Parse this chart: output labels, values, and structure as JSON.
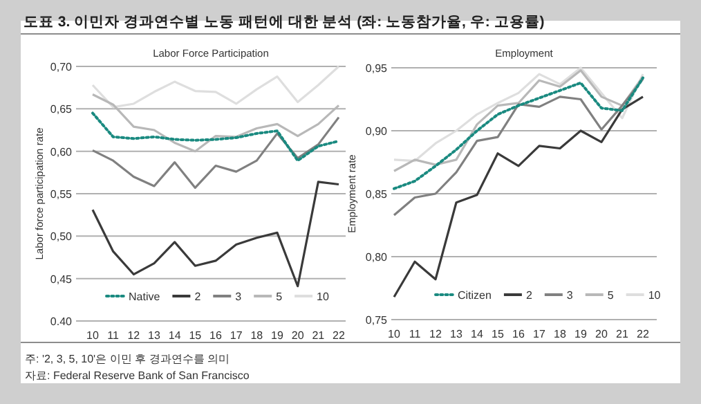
{
  "chart_data": [
    {
      "type": "line",
      "title": "Labor Force Participation",
      "ylabel": "Labor force participation rate",
      "annotations": [
        "도표 3. 이민자 경과연수별 노동 패턴에 대한 분석 (좌: 노동참가율, 우: 고용률)",
        "주: '2, 3, 5, 10'은 이민 후 경과연수를 의미",
        "자료: Federal Reserve Bank of San Francisco"
      ],
      "categories": [
        "10",
        "11",
        "12",
        "13",
        "14",
        "15",
        "16",
        "17",
        "18",
        "19",
        "20",
        "21",
        "22"
      ],
      "ylim": [
        0.4,
        0.7
      ],
      "yticks": [
        {
          "value": 0.4,
          "label": "0.40"
        },
        {
          "value": 0.45,
          "label": "0,45"
        },
        {
          "value": 0.5,
          "label": "0,50"
        },
        {
          "value": 0.55,
          "label": "0,55"
        },
        {
          "value": 0.6,
          "label": "0,60"
        },
        {
          "value": 0.65,
          "label": "0,65"
        },
        {
          "value": 0.7,
          "label": "0,70"
        }
      ],
      "grid": "y",
      "legend": "bottom",
      "marker": "none",
      "series": [
        {
          "name": "Native",
          "color": "#1a8a80",
          "line_style": "dotted",
          "values": [
            0.645,
            0.617,
            0.615,
            0.617,
            0.614,
            0.613,
            0.614,
            0.616,
            0.621,
            0.624,
            0.589,
            0.606,
            0.612
          ]
        },
        {
          "name": "2",
          "color": "#3a3a3a",
          "values": [
            0.531,
            0.482,
            0.455,
            0.468,
            0.493,
            0.465,
            0.471,
            0.49,
            0.498,
            0.504,
            0.441,
            0.564,
            0.561
          ]
        },
        {
          "name": "3",
          "color": "#808080",
          "values": [
            0.601,
            0.589,
            0.57,
            0.559,
            0.587,
            0.557,
            0.583,
            0.576,
            0.589,
            0.621,
            0.592,
            0.608,
            0.64
          ]
        },
        {
          "name": "5",
          "color": "#b8b8b8",
          "values": [
            0.667,
            0.655,
            0.629,
            0.625,
            0.61,
            0.6,
            0.618,
            0.617,
            0.627,
            0.632,
            0.618,
            0.632,
            0.654
          ]
        },
        {
          "name": "10",
          "color": "#dedede",
          "values": [
            0.678,
            0.652,
            0.656,
            0.67,
            0.682,
            0.671,
            0.67,
            0.656,
            0.673,
            0.688,
            0.658,
            0.678,
            0.7
          ]
        }
      ]
    },
    {
      "type": "line",
      "title": "Employment",
      "ylabel": "Employment rate",
      "categories": [
        "10",
        "11",
        "12",
        "13",
        "14",
        "15",
        "16",
        "17",
        "18",
        "19",
        "20",
        "21",
        "22"
      ],
      "ylim": [
        0.75,
        0.95
      ],
      "yticks": [
        {
          "value": 0.75,
          "label": "0,75"
        },
        {
          "value": 0.8,
          "label": "0,80"
        },
        {
          "value": 0.85,
          "label": "0,85"
        },
        {
          "value": 0.9,
          "label": "0,90"
        },
        {
          "value": 0.95,
          "label": "0,95"
        }
      ],
      "grid": "y",
      "legend": "bottom",
      "marker": "none",
      "series": [
        {
          "name": "Citizen",
          "color": "#1a8a80",
          "line_style": "dotted",
          "values": [
            0.854,
            0.86,
            0.872,
            0.885,
            0.9,
            0.913,
            0.92,
            0.926,
            0.932,
            0.938,
            0.918,
            0.916,
            0.942
          ]
        },
        {
          "name": "2",
          "color": "#3a3a3a",
          "values": [
            0.768,
            0.796,
            0.782,
            0.843,
            0.849,
            0.882,
            0.872,
            0.888,
            0.886,
            0.9,
            0.891,
            0.917,
            0.927
          ]
        },
        {
          "name": "3",
          "color": "#808080",
          "values": [
            0.833,
            0.847,
            0.85,
            0.867,
            0.892,
            0.895,
            0.921,
            0.919,
            0.927,
            0.925,
            0.901,
            0.92,
            0.941
          ]
        },
        {
          "name": "5",
          "color": "#b8b8b8",
          "values": [
            0.868,
            0.877,
            0.873,
            0.877,
            0.905,
            0.92,
            0.922,
            0.94,
            0.935,
            0.948,
            0.927,
            0.92,
            0.943
          ]
        },
        {
          "name": "10",
          "color": "#dedede",
          "values": [
            0.877,
            0.876,
            0.89,
            0.9,
            0.913,
            0.922,
            0.93,
            0.945,
            0.937,
            0.95,
            0.93,
            0.91,
            0.945
          ]
        }
      ]
    }
  ]
}
